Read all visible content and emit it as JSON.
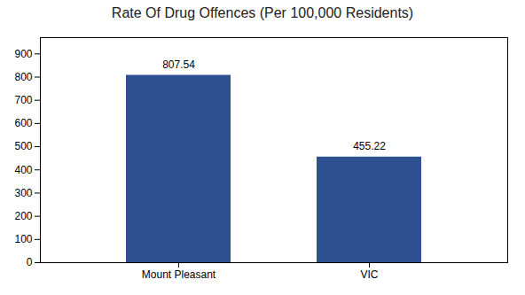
{
  "chart_data": {
    "type": "bar",
    "title": "Rate Of Drug Offences (Per 100,000 Residents)",
    "categories": [
      "Mount Pleasant",
      "VIC"
    ],
    "values": [
      807.54,
      455.22
    ],
    "color": "#2e5090",
    "ylim": [
      0,
      970
    ],
    "yticks": [
      0,
      100,
      200,
      300,
      400,
      500,
      600,
      700,
      800,
      900
    ],
    "grid": false,
    "data_labels": true
  }
}
